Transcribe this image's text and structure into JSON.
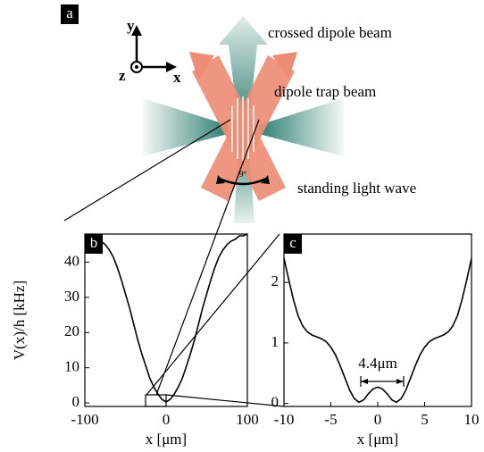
{
  "figure": {
    "panel_a": {
      "label": "a",
      "axis_y": "y",
      "axis_x": "x",
      "axis_z": "z",
      "angle": "9°",
      "beam_labels": [
        "crossed dipole beam",
        "dipole trap beam",
        "standing light wave"
      ]
    },
    "chart_data": [
      {
        "type": "line",
        "label": "b",
        "ylabel": "V(x)/h [kHz]",
        "xlabel": "x [μm]",
        "color": "#000000",
        "x": [
          -100,
          -95,
          -90,
          -85,
          -80,
          -75,
          -70,
          -65,
          -60,
          -55,
          -50,
          -45,
          -40,
          -35,
          -30,
          -25,
          -20,
          -15,
          -10,
          -5,
          0,
          5,
          10,
          15,
          20,
          25,
          30,
          35,
          40,
          45,
          50,
          55,
          60,
          65,
          70,
          75,
          80,
          85,
          90,
          95,
          100
        ],
        "values": [
          47,
          47.5,
          47,
          46.5,
          46,
          45,
          43.5,
          41.5,
          38.5,
          35,
          31,
          27,
          22.5,
          18,
          14,
          10.5,
          7,
          4.5,
          2.5,
          1,
          0.3,
          1,
          2.5,
          4.5,
          7,
          10.5,
          14,
          18,
          22.5,
          27,
          31,
          35,
          38.5,
          41.5,
          43.5,
          45,
          46,
          46.5,
          47.5,
          47.5,
          48
        ],
        "xlim": [
          -100,
          100
        ],
        "ylim": [
          -1,
          48
        ],
        "xticks": [
          -100,
          0,
          100
        ],
        "yticks": [
          0,
          10,
          20,
          30,
          40
        ]
      },
      {
        "type": "line",
        "label": "c",
        "xlabel": "x [μm]",
        "annotation": "4.4μm",
        "color": "#000000",
        "x": [
          -10,
          -9.5,
          -9,
          -8.5,
          -8,
          -7.5,
          -7,
          -6.5,
          -6,
          -5.5,
          -5,
          -4.5,
          -4,
          -3.5,
          -3,
          -2.5,
          -2,
          -1.5,
          -1,
          -0.5,
          0,
          0.5,
          1,
          1.5,
          2,
          2.5,
          3,
          3.5,
          4,
          4.5,
          5,
          5.5,
          6,
          6.5,
          7,
          7.5,
          8,
          8.5,
          9,
          9.5,
          10
        ],
        "values": [
          2.4,
          2.05,
          1.72,
          1.45,
          1.28,
          1.18,
          1.13,
          1.1,
          1.07,
          1.02,
          0.93,
          0.8,
          0.62,
          0.42,
          0.22,
          0.08,
          0.02,
          0.06,
          0.16,
          0.24,
          0.27,
          0.24,
          0.16,
          0.06,
          0.02,
          0.08,
          0.22,
          0.42,
          0.62,
          0.8,
          0.93,
          1.02,
          1.07,
          1.1,
          1.13,
          1.18,
          1.28,
          1.45,
          1.72,
          2.05,
          2.4
        ],
        "xlim": [
          -10,
          10
        ],
        "ylim": [
          -0.05,
          2.8
        ],
        "xticks": [
          -10,
          -5,
          0,
          5,
          10
        ],
        "yticks": [
          0,
          1,
          2
        ]
      }
    ]
  }
}
